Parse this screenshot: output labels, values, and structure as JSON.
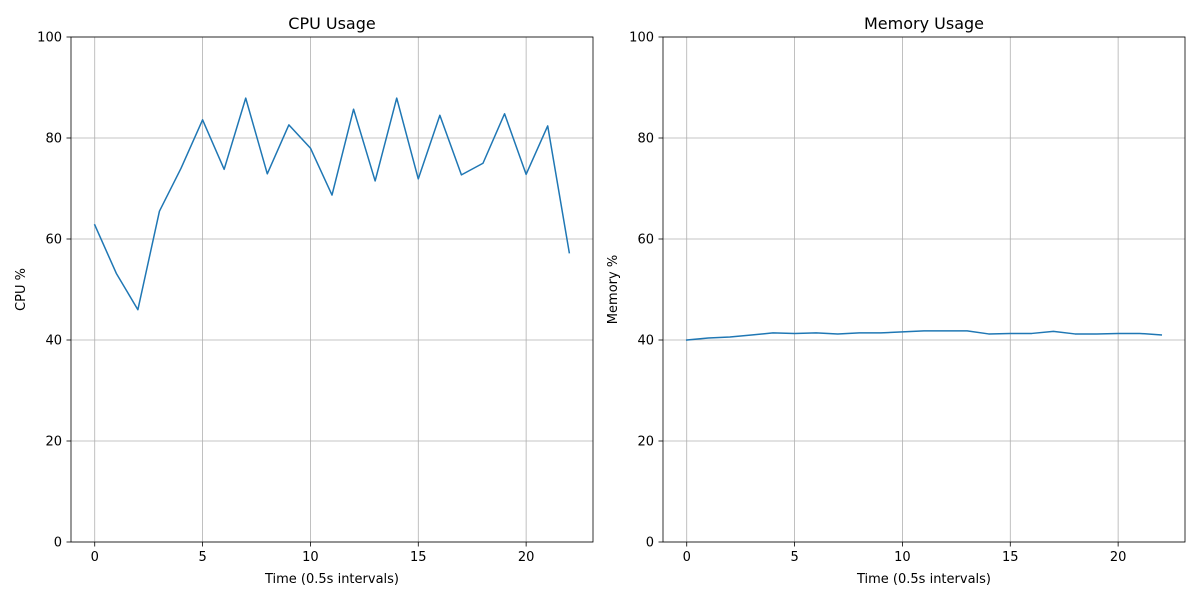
{
  "chart_data": [
    {
      "type": "line",
      "title": "CPU Usage",
      "xlabel": "Time (0.5s intervals)",
      "ylabel": "CPU %",
      "xlim": [
        -1.1,
        23.1
      ],
      "ylim": [
        0,
        100
      ],
      "xticks": [
        0,
        5,
        10,
        15,
        20
      ],
      "yticks": [
        0,
        20,
        40,
        60,
        80,
        100
      ],
      "grid": true,
      "color": "#1f77b4",
      "x": [
        0,
        1,
        2,
        3,
        4,
        5,
        6,
        7,
        8,
        9,
        10,
        11,
        12,
        13,
        14,
        15,
        16,
        17,
        18,
        19,
        20,
        21,
        22
      ],
      "series": [
        {
          "values": [
            62.8,
            53.2,
            46.0,
            65.5,
            74.0,
            83.6,
            73.8,
            87.9,
            72.9,
            82.6,
            78.0,
            68.7,
            85.7,
            71.5,
            87.9,
            71.9,
            84.5,
            72.7,
            75.0,
            84.8,
            72.8,
            82.4,
            57.3
          ]
        }
      ]
    },
    {
      "type": "line",
      "title": "Memory Usage",
      "xlabel": "Time (0.5s intervals)",
      "ylabel": "Memory %",
      "xlim": [
        -1.1,
        23.1
      ],
      "ylim": [
        0,
        100
      ],
      "xticks": [
        0,
        5,
        10,
        15,
        20
      ],
      "yticks": [
        0,
        20,
        40,
        60,
        80,
        100
      ],
      "grid": true,
      "color": "#1f77b4",
      "x": [
        0,
        1,
        2,
        3,
        4,
        5,
        6,
        7,
        8,
        9,
        10,
        11,
        12,
        13,
        14,
        15,
        16,
        17,
        18,
        19,
        20,
        21,
        22
      ],
      "series": [
        {
          "values": [
            40.0,
            40.4,
            40.6,
            41.0,
            41.4,
            41.3,
            41.4,
            41.2,
            41.4,
            41.4,
            41.6,
            41.8,
            41.8,
            41.8,
            41.2,
            41.3,
            41.3,
            41.7,
            41.2,
            41.2,
            41.3,
            41.3,
            41.0
          ]
        }
      ]
    }
  ]
}
